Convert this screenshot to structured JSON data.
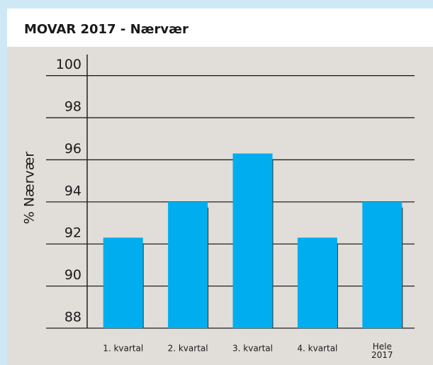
{
  "chart_data": {
    "type": "bar",
    "title": "MOVAR 2017 - Nærvær",
    "y_label": "% Nærvær",
    "categories": [
      "1. kvartal",
      "2. kvartal",
      "3. kvartal",
      "4. kvartal",
      "Hele\n2017"
    ],
    "values": [
      92.3,
      94.0,
      96.3,
      92.3,
      94.0
    ],
    "color": "#00aeef",
    "ylim": [
      88,
      101
    ],
    "yticks": [
      88,
      90,
      92,
      94,
      96,
      98,
      100
    ],
    "grid": true
  }
}
